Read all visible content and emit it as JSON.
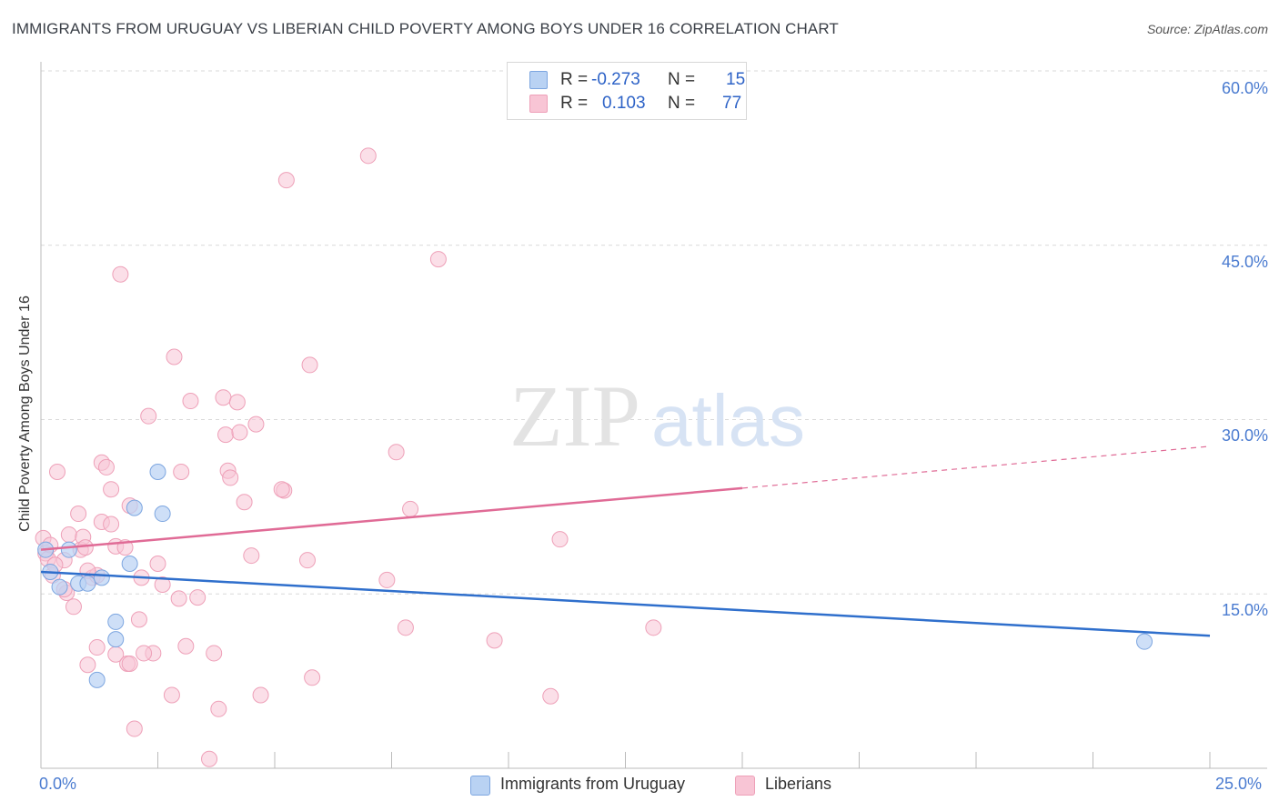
{
  "header": {
    "title": "IMMIGRANTS FROM URUGUAY VS LIBERIAN CHILD POVERTY AMONG BOYS UNDER 16 CORRELATION CHART",
    "source": "Source: ZipAtlas.com"
  },
  "watermark": {
    "zip": "ZIP",
    "atlas": "atlas"
  },
  "stats": {
    "blue": {
      "r_label": "R =",
      "r_value": "-0.273",
      "n_label": "N =",
      "n_value": "15",
      "color": "#aac7f0"
    },
    "pink": {
      "r_label": "R =",
      "r_value": "0.103",
      "n_label": "N =",
      "n_value": "77",
      "color": "#f6b8cd"
    }
  },
  "legend": {
    "blue_label": "Immigrants from Uruguay",
    "pink_label": "Liberians"
  },
  "colors": {
    "blue_fill": "#b9d2f3",
    "blue_stroke": "#7da6e0",
    "blue_line": "#2f6fcc",
    "pink_fill": "#f8c5d5",
    "pink_stroke": "#eea0b8",
    "pink_line": "#e06b96",
    "axis_text": "#4a7bd0",
    "grid": "#d9d9d9"
  },
  "chart_data": {
    "type": "scatter",
    "title": "IMMIGRANTS FROM URUGUAY VS LIBERIAN CHILD POVERTY AMONG BOYS UNDER 16 CORRELATION CHART",
    "xlabel": "",
    "ylabel": "Child Poverty Among Boys Under 16",
    "xlim": [
      0,
      25
    ],
    "ylim": [
      0,
      60
    ],
    "x_tick_labels": [
      "0.0%",
      "25.0%"
    ],
    "y_ticks": [
      15,
      30,
      45,
      60
    ],
    "y_tick_labels": [
      "15.0%",
      "30.0%",
      "45.0%",
      "60.0%"
    ],
    "series": [
      {
        "name": "Immigrants from Uruguay",
        "points": [
          {
            "x": 0.1,
            "y": 18.8
          },
          {
            "x": 0.2,
            "y": 16.9
          },
          {
            "x": 0.4,
            "y": 15.6
          },
          {
            "x": 0.6,
            "y": 18.8
          },
          {
            "x": 0.8,
            "y": 15.9
          },
          {
            "x": 1.0,
            "y": 15.9
          },
          {
            "x": 1.3,
            "y": 16.4
          },
          {
            "x": 1.2,
            "y": 7.6
          },
          {
            "x": 1.6,
            "y": 12.6
          },
          {
            "x": 1.6,
            "y": 11.1
          },
          {
            "x": 1.9,
            "y": 17.6
          },
          {
            "x": 2.0,
            "y": 22.4
          },
          {
            "x": 2.5,
            "y": 25.5
          },
          {
            "x": 2.6,
            "y": 21.9
          },
          {
            "x": 23.6,
            "y": 10.9
          }
        ],
        "trend": {
          "x": [
            0,
            25
          ],
          "y": [
            16.9,
            11.4
          ]
        }
      },
      {
        "name": "Liberians",
        "points": [
          {
            "x": 0.05,
            "y": 19.8
          },
          {
            "x": 0.1,
            "y": 18.5
          },
          {
            "x": 0.15,
            "y": 18.0
          },
          {
            "x": 0.2,
            "y": 19.2
          },
          {
            "x": 0.25,
            "y": 16.6
          },
          {
            "x": 0.35,
            "y": 25.5
          },
          {
            "x": 0.5,
            "y": 17.9
          },
          {
            "x": 0.55,
            "y": 15.1
          },
          {
            "x": 0.5,
            "y": 15.4
          },
          {
            "x": 0.6,
            "y": 20.1
          },
          {
            "x": 0.7,
            "y": 13.9
          },
          {
            "x": 0.85,
            "y": 18.8
          },
          {
            "x": 0.8,
            "y": 21.9
          },
          {
            "x": 0.9,
            "y": 19.9
          },
          {
            "x": 0.95,
            "y": 19.0
          },
          {
            "x": 1.0,
            "y": 8.9
          },
          {
            "x": 1.1,
            "y": 16.4
          },
          {
            "x": 1.2,
            "y": 10.4
          },
          {
            "x": 1.2,
            "y": 16.6
          },
          {
            "x": 1.3,
            "y": 21.2
          },
          {
            "x": 1.3,
            "y": 26.3
          },
          {
            "x": 1.4,
            "y": 25.9
          },
          {
            "x": 1.5,
            "y": 24.0
          },
          {
            "x": 1.5,
            "y": 21.0
          },
          {
            "x": 1.6,
            "y": 19.1
          },
          {
            "x": 1.6,
            "y": 9.8
          },
          {
            "x": 1.7,
            "y": 42.5
          },
          {
            "x": 1.8,
            "y": 19.0
          },
          {
            "x": 1.85,
            "y": 9.0
          },
          {
            "x": 1.9,
            "y": 22.6
          },
          {
            "x": 1.9,
            "y": 9.0
          },
          {
            "x": 2.0,
            "y": 3.4
          },
          {
            "x": 2.1,
            "y": 12.8
          },
          {
            "x": 2.15,
            "y": 16.4
          },
          {
            "x": 2.3,
            "y": 30.3
          },
          {
            "x": 2.4,
            "y": 9.9
          },
          {
            "x": 2.5,
            "y": 17.6
          },
          {
            "x": 2.6,
            "y": 15.8
          },
          {
            "x": 2.8,
            "y": 6.3
          },
          {
            "x": 2.85,
            "y": 35.4
          },
          {
            "x": 2.95,
            "y": 14.6
          },
          {
            "x": 3.0,
            "y": 25.5
          },
          {
            "x": 3.1,
            "y": 10.5
          },
          {
            "x": 3.2,
            "y": 31.6
          },
          {
            "x": 3.35,
            "y": 14.7
          },
          {
            "x": 3.6,
            "y": 0.8
          },
          {
            "x": 3.7,
            "y": 9.9
          },
          {
            "x": 3.8,
            "y": 5.1
          },
          {
            "x": 3.9,
            "y": 31.9
          },
          {
            "x": 3.95,
            "y": 28.7
          },
          {
            "x": 4.0,
            "y": 25.6
          },
          {
            "x": 4.05,
            "y": 25.0
          },
          {
            "x": 4.2,
            "y": 31.5
          },
          {
            "x": 4.25,
            "y": 28.9
          },
          {
            "x": 4.35,
            "y": 22.9
          },
          {
            "x": 4.5,
            "y": 18.3
          },
          {
            "x": 4.6,
            "y": 29.6
          },
          {
            "x": 4.7,
            "y": 6.3
          },
          {
            "x": 5.2,
            "y": 23.9
          },
          {
            "x": 5.25,
            "y": 50.6
          },
          {
            "x": 5.7,
            "y": 17.9
          },
          {
            "x": 5.75,
            "y": 34.7
          },
          {
            "x": 5.8,
            "y": 7.8
          },
          {
            "x": 7.0,
            "y": 52.7
          },
          {
            "x": 7.4,
            "y": 16.2
          },
          {
            "x": 7.6,
            "y": 27.2
          },
          {
            "x": 7.8,
            "y": 12.1
          },
          {
            "x": 7.9,
            "y": 22.3
          },
          {
            "x": 8.5,
            "y": 43.8
          },
          {
            "x": 9.7,
            "y": 11.0
          },
          {
            "x": 10.9,
            "y": 6.2
          },
          {
            "x": 11.1,
            "y": 19.7
          },
          {
            "x": 13.1,
            "y": 12.1
          },
          {
            "x": 5.15,
            "y": 24.0
          },
          {
            "x": 0.3,
            "y": 17.5
          },
          {
            "x": 2.2,
            "y": 9.9
          },
          {
            "x": 1.0,
            "y": 17.0
          }
        ],
        "trend": {
          "x": [
            0,
            15
          ],
          "y": [
            18.8,
            24.1
          ]
        },
        "trend_dashed": {
          "x": [
            15,
            25
          ],
          "y": [
            24.1,
            27.7
          ]
        }
      }
    ]
  }
}
